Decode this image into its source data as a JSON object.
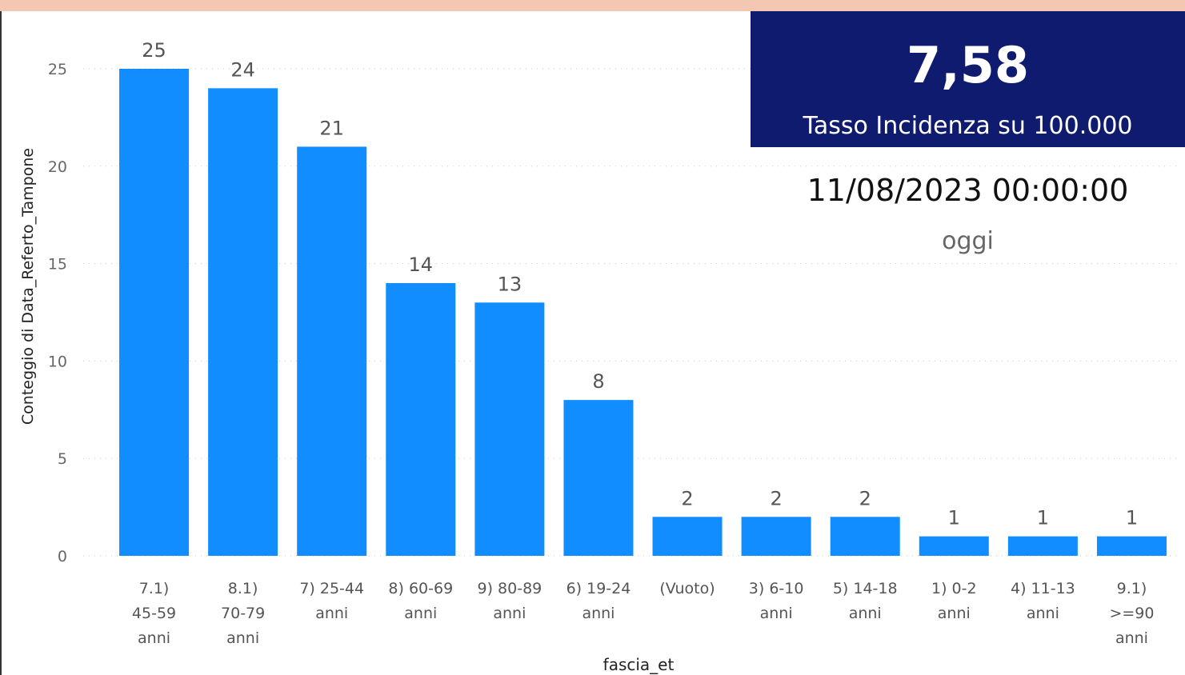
{
  "chart_data": {
    "type": "bar",
    "categories": [
      "7.1) 45-59 anni",
      "8.1) 70-79 anni",
      "7) 25-44 anni",
      "8) 60-69 anni",
      "9) 80-89 anni",
      "6) 19-24 anni",
      "(Vuoto)",
      "3) 6-10 anni",
      "5) 14-18 anni",
      "1) 0-2 anni",
      "4) 11-13 anni",
      "9.1) >=90 anni"
    ],
    "category_lines": [
      [
        "7.1)",
        "45-59",
        "anni"
      ],
      [
        "8.1)",
        "70-79",
        "anni"
      ],
      [
        "7) 25-44",
        "anni"
      ],
      [
        "8) 60-69",
        "anni"
      ],
      [
        "9) 80-89",
        "anni"
      ],
      [
        "6) 19-24",
        "anni"
      ],
      [
        "(Vuoto)"
      ],
      [
        "3) 6-10",
        "anni"
      ],
      [
        "5) 14-18",
        "anni"
      ],
      [
        "1) 0-2",
        "anni"
      ],
      [
        "4) 11-13",
        "anni"
      ],
      [
        "9.1)",
        ">=90",
        "anni"
      ]
    ],
    "values": [
      25,
      24,
      21,
      14,
      13,
      8,
      2,
      2,
      2,
      1,
      1,
      1
    ],
    "xlabel": "fascia_et",
    "ylabel": "Conteggio di Data_Referto_Tampone",
    "ylim": [
      0,
      25
    ],
    "yticks": [
      0,
      5,
      10,
      15,
      20,
      25
    ],
    "grid": true,
    "bar_color": "#118dff"
  },
  "kpi": {
    "value": "7,58",
    "label": "Tasso Incidenza su 100.000",
    "background": "#0f1b6f"
  },
  "date_card": {
    "value": "11/08/2023 00:00:00",
    "label": "oggi"
  },
  "colors": {
    "top_bar": "#f4c7b3"
  }
}
